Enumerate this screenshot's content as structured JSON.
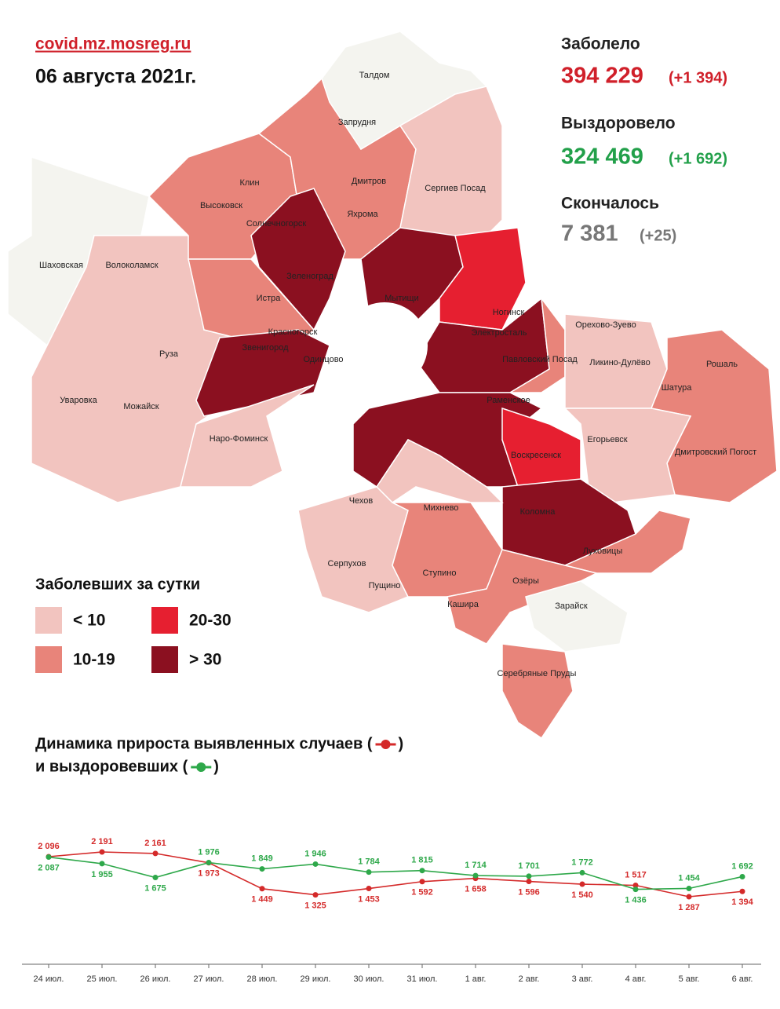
{
  "header": {
    "site": "covid.mz.mosreg.ru",
    "date": "06 августа 2021г."
  },
  "stats": {
    "infected": {
      "label": "Заболело",
      "total": "394 229",
      "delta": "(+1 394)"
    },
    "recovered": {
      "label": "Выздоровело",
      "total": "324 469",
      "delta": "(+1 692)"
    },
    "died": {
      "label": "Скончалось",
      "total": "7 381",
      "delta": "(+25)"
    }
  },
  "map_labels": [
    "Талдом",
    "Запрудня",
    "Клин",
    "Дмитров",
    "Сергиев Посад",
    "Высоковск",
    "Яхрома",
    "Солнечногорск",
    "Шаховская",
    "Волоколамск",
    "Зеленоград",
    "Мытищи",
    "Истра",
    "Ногинск",
    "Орехово-Зуево",
    "Красногорск",
    "Электросталь",
    "Звенигород",
    "Одинцово",
    "Павловский Посад",
    "Ликино-Дулёво",
    "Руза",
    "Рошаль",
    "Шатура",
    "Уваровка",
    "Можайск",
    "Раменское",
    "Наро-Фоминск",
    "Егорьевск",
    "Воскресенск",
    "Дмитровский Погост",
    "Чехов",
    "Михнево",
    "Коломна",
    "Серпухов",
    "Ступино",
    "Луховицы",
    "Пущино",
    "Озёры",
    "Кашира",
    "Зарайск",
    "Серебряные Пруды"
  ],
  "legend": {
    "title": "Заболевших за сутки",
    "items": [
      {
        "label": "< 10",
        "color": "#f2c4bf"
      },
      {
        "label": "20-30",
        "color": "#e61f30"
      },
      {
        "label": "10-19",
        "color": "#e8847a"
      },
      {
        "label": "> 30",
        "color": "#8b1020"
      }
    ]
  },
  "chart_data": {
    "type": "line",
    "title": [
      "Динамика прироста выявленных случаев (",
      "и выздоровевших ("
    ],
    "title_close": ")",
    "categories": [
      "24 июл.",
      "25 июл.",
      "26 июл.",
      "27 июл.",
      "28 июл.",
      "29 июл.",
      "30 июл.",
      "31 июл.",
      "1 авг.",
      "2 авг.",
      "3 авг.",
      "4 авг.",
      "5 авг.",
      "6 авг."
    ],
    "series": [
      {
        "color": "#d42a2a",
        "values": [
          2096,
          2191,
          2161,
          1973,
          1449,
          1325,
          1453,
          1592,
          1658,
          1596,
          1540,
          1517,
          1287,
          1394
        ],
        "value_labels": [
          "2 096",
          "2 191",
          "2 161",
          "1 973",
          "1 449",
          "1 325",
          "1 453",
          "1 592",
          "1 658",
          "1 596",
          "1 540",
          "1 517",
          "1 287",
          "1 394"
        ]
      },
      {
        "color": "#2ea84a",
        "values": [
          2087,
          1955,
          1675,
          1976,
          1849,
          1946,
          1784,
          1815,
          1714,
          1701,
          1772,
          1436,
          1454,
          1692
        ],
        "value_labels": [
          "2 087",
          "1 955",
          "1 675",
          "1 976",
          "1 849",
          "1 946",
          "1 784",
          "1 815",
          "1 714",
          "1 701",
          "1 772",
          "1 436",
          "1 454",
          "1 692"
        ]
      }
    ]
  }
}
